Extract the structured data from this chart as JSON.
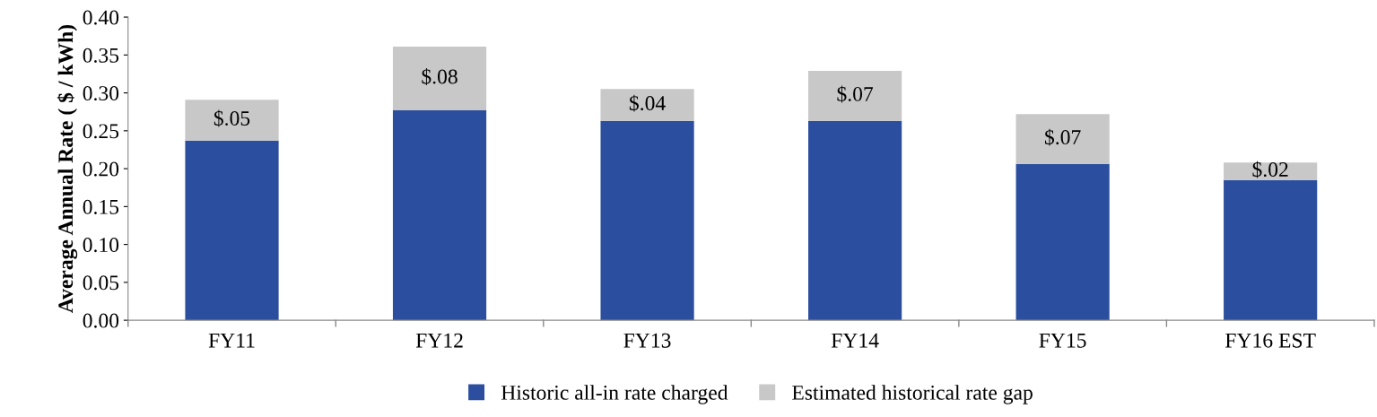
{
  "chart_data": {
    "type": "bar",
    "stacked": true,
    "ylabel": "Average Annual Rate ( $ / kWh)",
    "categories": [
      "FY11",
      "FY12",
      "FY13",
      "FY14",
      "FY15",
      "FY16 EST"
    ],
    "series": [
      {
        "name": "Historic all-in rate charged",
        "color": "#2b4f9e",
        "values": [
          0.237,
          0.277,
          0.263,
          0.263,
          0.206,
          0.185
        ]
      },
      {
        "name": "Estimated historical rate gap",
        "color": "#c8c8c8",
        "values": [
          0.054,
          0.084,
          0.042,
          0.066,
          0.066,
          0.023
        ],
        "value_labels": [
          "$.05",
          "$.08",
          "$.04",
          "$.07",
          "$.07",
          "$.02"
        ]
      }
    ],
    "ylim": [
      0,
      0.4
    ],
    "yticks": [
      {
        "value": 0,
        "label": "0.00"
      },
      {
        "value": 0.05,
        "label": "0.05"
      },
      {
        "value": 0.1,
        "label": "0.10"
      },
      {
        "value": 0.15,
        "label": "0.15"
      },
      {
        "value": 0.2,
        "label": "0.20"
      },
      {
        "value": 0.25,
        "label": "0.25"
      },
      {
        "value": 0.3,
        "label": "0.30"
      },
      {
        "value": 0.35,
        "label": "0.35"
      },
      {
        "value": 0.4,
        "label": "0.40"
      }
    ],
    "grid": false,
    "legend": "bottom"
  }
}
